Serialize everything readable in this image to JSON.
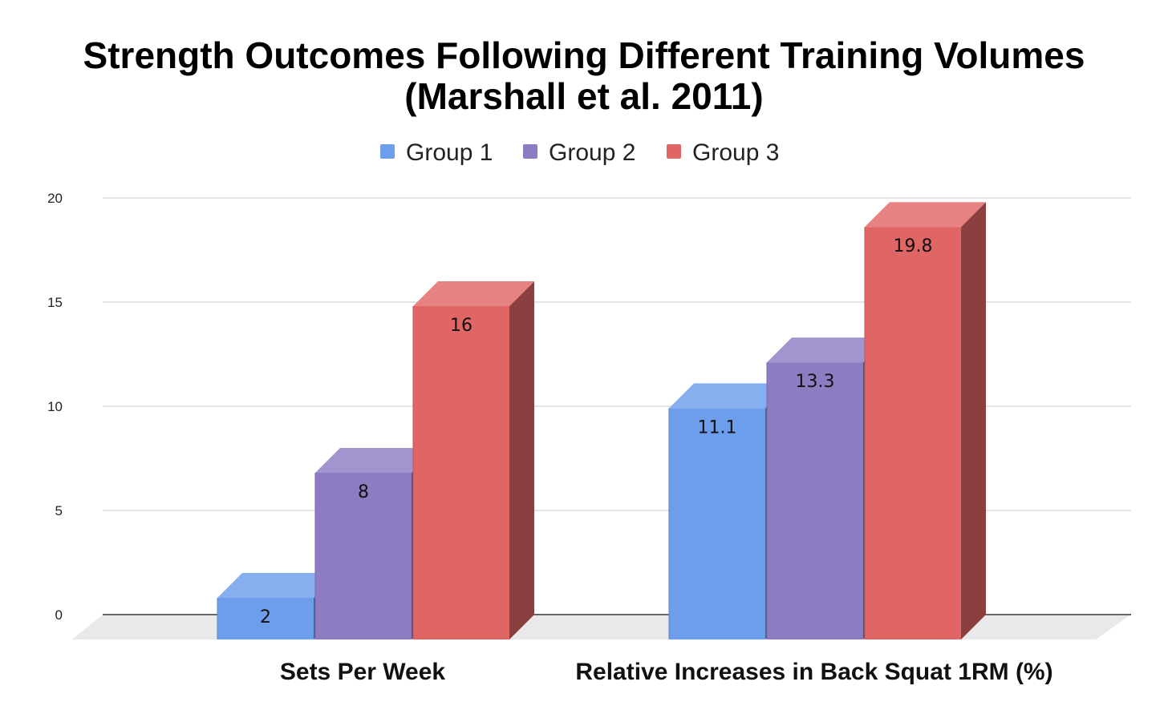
{
  "chart_data": {
    "type": "bar",
    "title": "Strength Outcomes Following Different Training Volumes",
    "subtitle": "(Marshall et al. 2011)",
    "categories": [
      "Sets Per Week",
      "Relative Increases in Back Squat 1RM (%)"
    ],
    "series": [
      {
        "name": "Group 1",
        "values": [
          2,
          11.1
        ],
        "labels": [
          "2",
          "11.1"
        ],
        "color": "#6d9eeb"
      },
      {
        "name": "Group 2",
        "values": [
          8,
          13.3
        ],
        "labels": [
          "8",
          "13.3"
        ],
        "color": "#8e7cc3"
      },
      {
        "name": "Group 3",
        "values": [
          16,
          19.8
        ],
        "labels": [
          "16",
          "19.8"
        ],
        "color": "#e06666"
      }
    ],
    "y_ticks": [
      {
        "value": 0,
        "label": "0"
      },
      {
        "value": 5,
        "label": "5"
      },
      {
        "value": 10,
        "label": "10"
      },
      {
        "value": 15,
        "label": "15"
      },
      {
        "value": 20,
        "label": "20"
      }
    ],
    "ylim": [
      0,
      20
    ],
    "xlabel": "",
    "ylabel": "",
    "legend_position": "top",
    "grid": true,
    "style": "3d"
  }
}
